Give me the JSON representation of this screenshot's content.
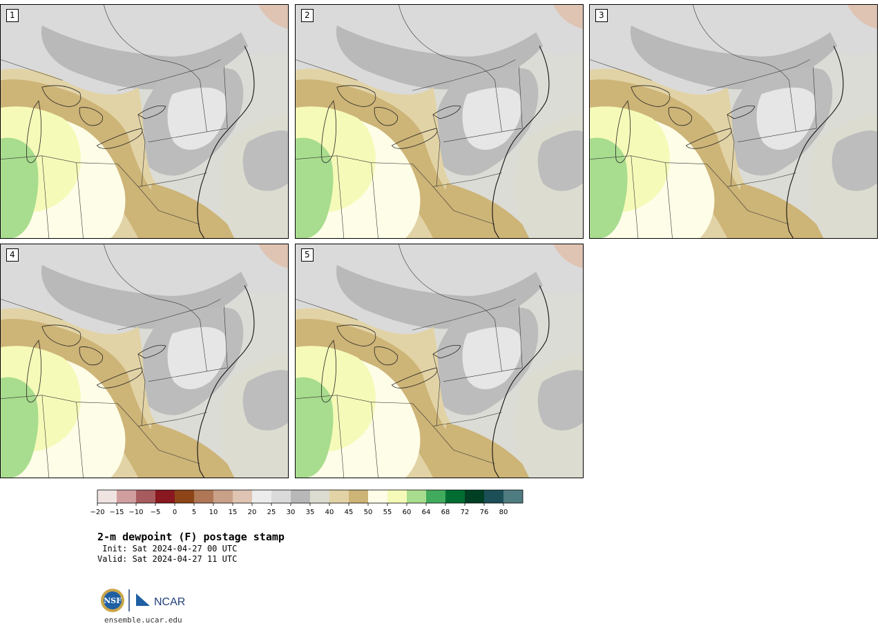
{
  "panels": [
    {
      "label": "1"
    },
    {
      "label": "2"
    },
    {
      "label": "3"
    },
    {
      "label": "4"
    },
    {
      "label": "5"
    }
  ],
  "colorbar": {
    "ticks": [
      "−20",
      "−15",
      "−10",
      "−5",
      "0",
      "5",
      "10",
      "15",
      "20",
      "25",
      "30",
      "35",
      "40",
      "45",
      "50",
      "55",
      "60",
      "64",
      "68",
      "72",
      "76",
      "80"
    ],
    "colors": [
      "#f0e4e2",
      "#d19e9f",
      "#a85b5e",
      "#891820",
      "#8d4517",
      "#af7755",
      "#c9a188",
      "#dfc4b3",
      "#ececec",
      "#dadada",
      "#b8b8b8",
      "#dcdcd0",
      "#e2d3a6",
      "#cdb477",
      "#fefde7",
      "#f5fab8",
      "#a8dc8e",
      "#41ab5d",
      "#006d32",
      "#003f23",
      "#1c4f57",
      "#4f7c80"
    ]
  },
  "title": {
    "main": "2-m dewpoint (F) postage stamp",
    "init": " Init: Sat 2024-04-27 00 UTC",
    "valid": "Valid: Sat 2024-04-27 11 UTC"
  },
  "logo": {
    "nsf_text": "NSF",
    "ncar_text": "NCAR",
    "url": "ensemble.ucar.edu"
  }
}
